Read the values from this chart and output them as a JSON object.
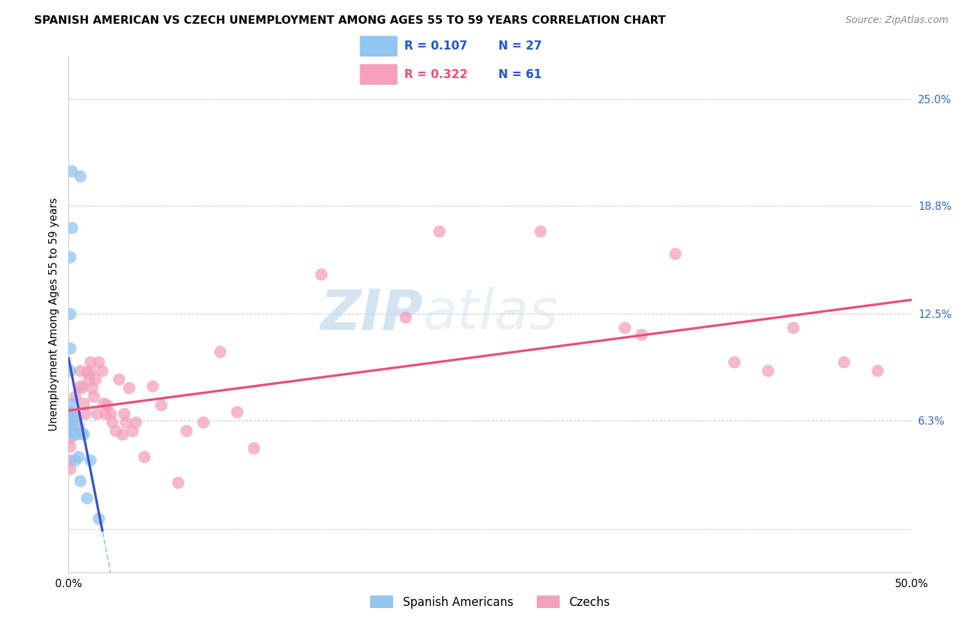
{
  "title": "SPANISH AMERICAN VS CZECH UNEMPLOYMENT AMONG AGES 55 TO 59 YEARS CORRELATION CHART",
  "source": "Source: ZipAtlas.com",
  "ylabel": "Unemployment Among Ages 55 to 59 years",
  "xlim": [
    0.0,
    0.5
  ],
  "ylim": [
    -0.025,
    0.275
  ],
  "xtick_positions": [
    0.0,
    0.1,
    0.2,
    0.3,
    0.4,
    0.5
  ],
  "xtick_labels": [
    "0.0%",
    "",
    "",
    "",
    "",
    "50.0%"
  ],
  "right_ytick_positions": [
    0.0,
    0.063,
    0.125,
    0.188,
    0.25
  ],
  "right_ytick_labels": [
    "",
    "6.3%",
    "12.5%",
    "18.8%",
    "25.0%"
  ],
  "background_color": "#ffffff",
  "grid_color": "#cccccc",
  "watermark_text": "ZIPatlas",
  "legend_r1": "R = 0.107",
  "legend_n1": "N = 27",
  "legend_r2": "R = 0.322",
  "legend_n2": "N = 61",
  "blue_scatter_color": "#92C5F0",
  "pink_scatter_color": "#F4A0BC",
  "blue_line_color": "#3555CC",
  "pink_line_color": "#E8507A",
  "blue_dashed_color": "#A0C8E8",
  "blue_label": "Spanish Americans",
  "pink_label": "Czechs",
  "sa_x": [
    0.002,
    0.007,
    0.002,
    0.001,
    0.001,
    0.001,
    0.001,
    0.001,
    0.001,
    0.001,
    0.001,
    0.001,
    0.001,
    0.002,
    0.003,
    0.003,
    0.003,
    0.004,
    0.004,
    0.005,
    0.006,
    0.007,
    0.008,
    0.009,
    0.011,
    0.013,
    0.018
  ],
  "sa_y": [
    0.208,
    0.205,
    0.175,
    0.158,
    0.125,
    0.105,
    0.092,
    0.073,
    0.067,
    0.063,
    0.06,
    0.057,
    0.068,
    0.063,
    0.063,
    0.058,
    0.055,
    0.063,
    0.04,
    0.055,
    0.042,
    0.028,
    0.056,
    0.055,
    0.018,
    0.04,
    0.006
  ],
  "cz_x": [
    0.001,
    0.001,
    0.001,
    0.001,
    0.001,
    0.001,
    0.001,
    0.001,
    0.003,
    0.004,
    0.005,
    0.006,
    0.007,
    0.007,
    0.008,
    0.009,
    0.01,
    0.011,
    0.012,
    0.013,
    0.013,
    0.014,
    0.015,
    0.016,
    0.017,
    0.018,
    0.02,
    0.021,
    0.022,
    0.023,
    0.025,
    0.026,
    0.028,
    0.03,
    0.032,
    0.033,
    0.034,
    0.036,
    0.038,
    0.04,
    0.045,
    0.05,
    0.055,
    0.065,
    0.07,
    0.08,
    0.09,
    0.1,
    0.11,
    0.15,
    0.2,
    0.22,
    0.28,
    0.33,
    0.34,
    0.36,
    0.395,
    0.415,
    0.43,
    0.46,
    0.48
  ],
  "cz_y": [
    0.067,
    0.063,
    0.06,
    0.057,
    0.053,
    0.048,
    0.04,
    0.035,
    0.068,
    0.077,
    0.065,
    0.06,
    0.092,
    0.083,
    0.082,
    0.073,
    0.067,
    0.091,
    0.087,
    0.097,
    0.092,
    0.082,
    0.077,
    0.087,
    0.067,
    0.097,
    0.092,
    0.073,
    0.067,
    0.072,
    0.067,
    0.062,
    0.057,
    0.087,
    0.055,
    0.067,
    0.062,
    0.082,
    0.057,
    0.062,
    0.042,
    0.083,
    0.072,
    0.027,
    0.057,
    0.062,
    0.103,
    0.068,
    0.047,
    0.148,
    0.123,
    0.173,
    0.173,
    0.117,
    0.113,
    0.16,
    0.097,
    0.092,
    0.117,
    0.097,
    0.092
  ]
}
